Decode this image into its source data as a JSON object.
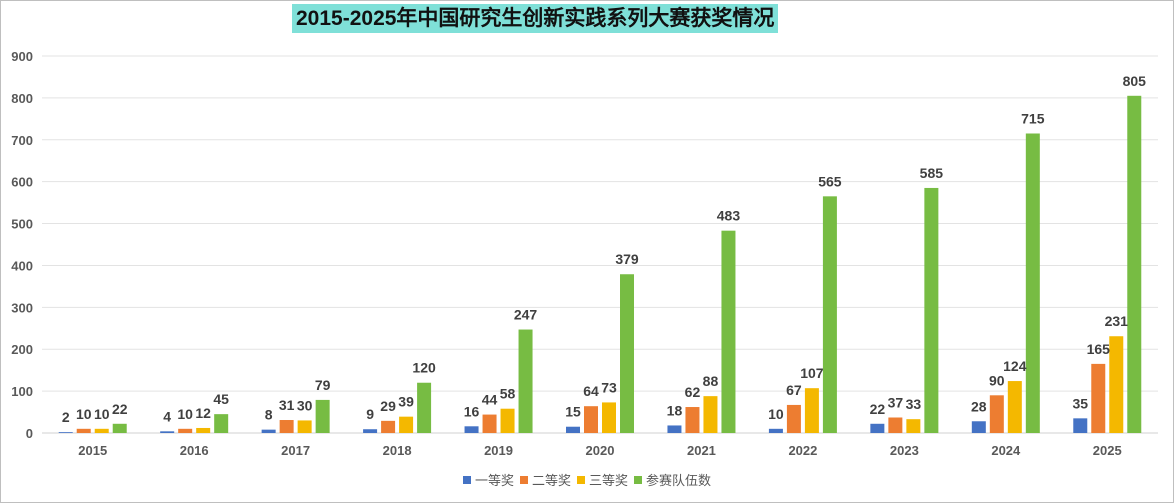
{
  "chart_data": {
    "type": "bar",
    "title": "2015-2025年中国研究生创新实践系列大赛获奖情况",
    "xlabel": "",
    "ylabel": "",
    "ylim": [
      0,
      900
    ],
    "yticks": [
      "0",
      "100",
      "200",
      "300",
      "400",
      "500",
      "600",
      "700",
      "800",
      "900"
    ],
    "grid": true,
    "legend_position": "bottom",
    "categories": [
      "2015",
      "2016",
      "2017",
      "2018",
      "2019",
      "2020",
      "2021",
      "2022",
      "2023",
      "2024",
      "2025"
    ],
    "series": [
      {
        "name": "一等奖",
        "color": "#4472c4",
        "values": [
          2,
          4,
          8,
          9,
          16,
          15,
          18,
          10,
          22,
          28,
          35
        ]
      },
      {
        "name": "二等奖",
        "color": "#ed7d31",
        "values": [
          10,
          10,
          31,
          29,
          44,
          64,
          62,
          67,
          37,
          90,
          165
        ]
      },
      {
        "name": "三等奖",
        "color": "#f4b800",
        "values": [
          10,
          12,
          30,
          39,
          58,
          73,
          88,
          107,
          33,
          124,
          231
        ]
      },
      {
        "name": "参赛队伍数",
        "color": "#77bc43",
        "values": [
          22,
          45,
          79,
          120,
          247,
          379,
          483,
          565,
          585,
          715,
          805
        ]
      }
    ]
  }
}
